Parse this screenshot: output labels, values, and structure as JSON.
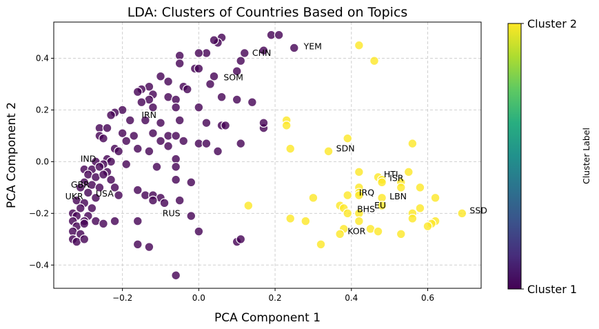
{
  "chart_data": {
    "type": "scatter",
    "title": "LDA: Clusters of Countries Based on Topics",
    "xlabel": "PCA Component 1",
    "ylabel": "PCA Component 2",
    "xlim": [
      -0.38,
      0.74
    ],
    "ylim": [
      -0.49,
      0.54
    ],
    "xticks": [
      -0.2,
      0.0,
      0.2,
      0.4,
      0.6
    ],
    "xtick_labels": [
      "−0.2",
      "0.0",
      "0.2",
      "0.4",
      "0.6"
    ],
    "yticks": [
      -0.4,
      -0.2,
      0.0,
      0.2,
      0.4
    ],
    "ytick_labels": [
      "−0.4",
      "−0.2",
      "0.0",
      "0.2",
      "0.4"
    ],
    "grid": true,
    "colorbar": {
      "label": "Cluster Label",
      "tick_labels": [
        "Cluster 2",
        "Cluster 1"
      ],
      "colormap": "viridis"
    },
    "series": [
      {
        "cluster": 1,
        "color": "#440154",
        "points": [
          [
            0.06,
            0.48
          ],
          [
            0.19,
            0.49
          ],
          [
            0.21,
            0.49
          ],
          [
            0.05,
            0.46
          ],
          [
            0.04,
            0.47
          ],
          [
            0.02,
            0.42
          ],
          [
            0.0,
            0.42
          ],
          [
            0.12,
            0.42
          ],
          [
            0.11,
            0.39
          ],
          [
            0.17,
            0.43
          ],
          [
            0.25,
            0.44
          ],
          [
            -0.05,
            0.41
          ],
          [
            -0.05,
            0.38
          ],
          [
            -0.01,
            0.36
          ],
          [
            0.0,
            0.36
          ],
          [
            0.04,
            0.33
          ],
          [
            0.03,
            0.3
          ],
          [
            0.1,
            0.35
          ],
          [
            -0.1,
            0.33
          ],
          [
            -0.08,
            0.31
          ],
          [
            -0.13,
            0.29
          ],
          [
            -0.04,
            0.29
          ],
          [
            -0.03,
            0.28
          ],
          [
            0.06,
            0.25
          ],
          [
            0.1,
            0.24
          ],
          [
            0.14,
            0.23
          ],
          [
            -0.15,
            0.28
          ],
          [
            -0.16,
            0.27
          ],
          [
            -0.12,
            0.26
          ],
          [
            -0.08,
            0.25
          ],
          [
            -0.06,
            0.24
          ],
          [
            -0.13,
            0.24
          ],
          [
            -0.15,
            0.23
          ],
          [
            -0.2,
            0.2
          ],
          [
            -0.22,
            0.19
          ],
          [
            -0.23,
            0.18
          ],
          [
            -0.12,
            0.21
          ],
          [
            -0.06,
            0.21
          ],
          [
            0.0,
            0.21
          ],
          [
            -0.14,
            0.16
          ],
          [
            -0.18,
            0.16
          ],
          [
            -0.1,
            0.15
          ],
          [
            -0.05,
            0.16
          ],
          [
            0.02,
            0.15
          ],
          [
            0.06,
            0.14
          ],
          [
            0.07,
            0.14
          ],
          [
            0.17,
            0.13
          ],
          [
            0.17,
            0.15
          ],
          [
            -0.26,
            0.13
          ],
          [
            -0.24,
            0.13
          ],
          [
            -0.2,
            0.11
          ],
          [
            -0.17,
            0.1
          ],
          [
            -0.12,
            0.11
          ],
          [
            -0.1,
            0.08
          ],
          [
            -0.08,
            0.1
          ],
          [
            -0.06,
            0.1
          ],
          [
            -0.26,
            0.1
          ],
          [
            -0.25,
            0.09
          ],
          [
            -0.19,
            0.08
          ],
          [
            -0.04,
            0.08
          ],
          [
            0.0,
            0.07
          ],
          [
            0.02,
            0.07
          ],
          [
            0.11,
            0.07
          ],
          [
            -0.22,
            0.05
          ],
          [
            -0.21,
            0.04
          ],
          [
            -0.16,
            0.05
          ],
          [
            -0.13,
            0.04
          ],
          [
            -0.08,
            0.06
          ],
          [
            0.05,
            0.04
          ],
          [
            -0.24,
            0.01
          ],
          [
            -0.23,
            0.0
          ],
          [
            -0.27,
            0.0
          ],
          [
            -0.25,
            -0.01
          ],
          [
            -0.19,
            -0.01
          ],
          [
            -0.06,
            0.01
          ],
          [
            -0.11,
            -0.02
          ],
          [
            -0.06,
            -0.02
          ],
          [
            -0.3,
            -0.03
          ],
          [
            -0.28,
            -0.03
          ],
          [
            -0.26,
            -0.02
          ],
          [
            -0.24,
            -0.04
          ],
          [
            -0.29,
            -0.05
          ],
          [
            -0.27,
            -0.06
          ],
          [
            -0.25,
            -0.05
          ],
          [
            -0.23,
            -0.07
          ],
          [
            -0.06,
            -0.07
          ],
          [
            -0.02,
            -0.08
          ],
          [
            -0.3,
            -0.08
          ],
          [
            -0.28,
            -0.09
          ],
          [
            -0.26,
            -0.1
          ],
          [
            -0.31,
            -0.1
          ],
          [
            -0.29,
            -0.12
          ],
          [
            -0.27,
            -0.14
          ],
          [
            -0.22,
            -0.1
          ],
          [
            -0.21,
            -0.13
          ],
          [
            -0.16,
            -0.11
          ],
          [
            -0.14,
            -0.13
          ],
          [
            -0.12,
            -0.13
          ],
          [
            -0.1,
            -0.14
          ],
          [
            -0.32,
            -0.15
          ],
          [
            -0.3,
            -0.16
          ],
          [
            -0.31,
            -0.18
          ],
          [
            -0.28,
            -0.18
          ],
          [
            -0.33,
            -0.2
          ],
          [
            -0.32,
            -0.21
          ],
          [
            -0.29,
            -0.21
          ],
          [
            -0.3,
            -0.23
          ],
          [
            -0.33,
            -0.23
          ],
          [
            -0.32,
            -0.25
          ],
          [
            -0.3,
            -0.24
          ],
          [
            -0.33,
            -0.27
          ],
          [
            -0.31,
            -0.28
          ],
          [
            -0.33,
            -0.3
          ],
          [
            -0.32,
            -0.31
          ],
          [
            -0.3,
            -0.3
          ],
          [
            -0.27,
            -0.23
          ],
          [
            -0.25,
            -0.24
          ],
          [
            -0.22,
            -0.23
          ],
          [
            -0.16,
            -0.23
          ],
          [
            -0.12,
            -0.15
          ],
          [
            -0.09,
            -0.16
          ],
          [
            -0.05,
            -0.15
          ],
          [
            -0.02,
            -0.21
          ],
          [
            0.0,
            -0.27
          ],
          [
            -0.16,
            -0.32
          ],
          [
            -0.13,
            -0.33
          ],
          [
            0.1,
            -0.31
          ],
          [
            0.11,
            -0.3
          ],
          [
            -0.06,
            -0.44
          ]
        ]
      },
      {
        "cluster": 2,
        "color": "#fde725",
        "points": [
          [
            0.42,
            0.45
          ],
          [
            0.46,
            0.39
          ],
          [
            0.23,
            0.16
          ],
          [
            0.23,
            0.14
          ],
          [
            0.39,
            0.09
          ],
          [
            0.34,
            0.04
          ],
          [
            0.24,
            0.05
          ],
          [
            0.56,
            0.07
          ],
          [
            0.42,
            -0.04
          ],
          [
            0.47,
            -0.06
          ],
          [
            0.48,
            -0.07
          ],
          [
            0.48,
            -0.08
          ],
          [
            0.55,
            -0.04
          ],
          [
            0.53,
            -0.08
          ],
          [
            0.53,
            -0.1
          ],
          [
            0.58,
            -0.1
          ],
          [
            0.42,
            -0.1
          ],
          [
            0.42,
            -0.12
          ],
          [
            0.39,
            -0.13
          ],
          [
            0.42,
            -0.13
          ],
          [
            0.48,
            -0.14
          ],
          [
            0.48,
            -0.17
          ],
          [
            0.58,
            -0.18
          ],
          [
            0.62,
            -0.14
          ],
          [
            0.56,
            -0.2
          ],
          [
            0.3,
            -0.14
          ],
          [
            0.37,
            -0.17
          ],
          [
            0.38,
            -0.18
          ],
          [
            0.39,
            -0.2
          ],
          [
            0.42,
            -0.2
          ],
          [
            0.56,
            -0.22
          ],
          [
            0.62,
            -0.23
          ],
          [
            0.61,
            -0.24
          ],
          [
            0.6,
            -0.25
          ],
          [
            0.69,
            -0.2
          ],
          [
            0.13,
            -0.17
          ],
          [
            0.24,
            -0.22
          ],
          [
            0.28,
            -0.23
          ],
          [
            0.42,
            -0.23
          ],
          [
            0.45,
            -0.26
          ],
          [
            0.47,
            -0.27
          ],
          [
            0.38,
            -0.26
          ],
          [
            0.37,
            -0.28
          ],
          [
            0.53,
            -0.28
          ],
          [
            0.32,
            -0.32
          ]
        ]
      }
    ],
    "annotations": [
      {
        "text": "YEM",
        "x": 0.275,
        "y": 0.445
      },
      {
        "text": "CHN",
        "x": 0.14,
        "y": 0.42
      },
      {
        "text": "SOM",
        "x": 0.065,
        "y": 0.325
      },
      {
        "text": "IRN",
        "x": -0.15,
        "y": 0.18
      },
      {
        "text": "SDN",
        "x": 0.36,
        "y": 0.05
      },
      {
        "text": "IND",
        "x": -0.31,
        "y": 0.01
      },
      {
        "text": "HTI",
        "x": 0.485,
        "y": -0.05
      },
      {
        "text": "ISR",
        "x": 0.5,
        "y": -0.065
      },
      {
        "text": "GBR",
        "x": -0.335,
        "y": -0.09
      },
      {
        "text": "IRQ",
        "x": 0.42,
        "y": -0.12
      },
      {
        "text": "LBN",
        "x": 0.5,
        "y": -0.135
      },
      {
        "text": "USA",
        "x": -0.27,
        "y": -0.125
      },
      {
        "text": "UKR",
        "x": -0.35,
        "y": -0.135
      },
      {
        "text": "EU",
        "x": 0.46,
        "y": -0.17
      },
      {
        "text": "BHS",
        "x": 0.415,
        "y": -0.185
      },
      {
        "text": "SSD",
        "x": 0.71,
        "y": -0.19
      },
      {
        "text": "RUS",
        "x": -0.095,
        "y": -0.2
      },
      {
        "text": "KOR",
        "x": 0.39,
        "y": -0.27
      }
    ]
  }
}
